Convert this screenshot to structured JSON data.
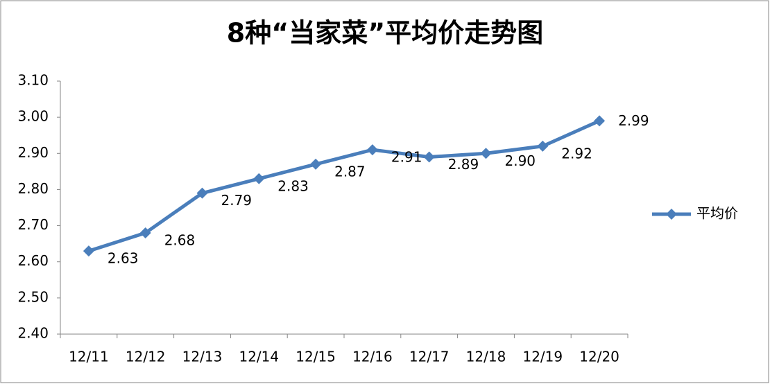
{
  "chart_data": {
    "type": "line",
    "title": "8种“当家菜”平均价走势图",
    "categories": [
      "12/11",
      "12/12",
      "12/13",
      "12/14",
      "12/15",
      "12/16",
      "12/17",
      "12/18",
      "12/19",
      "12/20"
    ],
    "series": [
      {
        "name": "平均价",
        "color": "#4a7ebb",
        "values": [
          2.63,
          2.68,
          2.79,
          2.83,
          2.87,
          2.91,
          2.89,
          2.9,
          2.92,
          2.99
        ],
        "value_labels": [
          "2.63",
          "2.68",
          "2.79",
          "2.83",
          "2.87",
          "2.91",
          "2.89",
          "2.90",
          "2.92",
          "2.99"
        ]
      }
    ],
    "ylim": [
      2.4,
      3.1
    ],
    "yticks": [
      {
        "value": 2.4,
        "label": "2.40"
      },
      {
        "value": 2.5,
        "label": "2.50"
      },
      {
        "value": 2.6,
        "label": "2.60"
      },
      {
        "value": 2.7,
        "label": "2.70"
      },
      {
        "value": 2.8,
        "label": "2.80"
      },
      {
        "value": 2.9,
        "label": "2.90"
      },
      {
        "value": 3.0,
        "label": "3.00"
      },
      {
        "value": 3.1,
        "label": "3.10"
      }
    ],
    "grid": false,
    "legend": "right"
  }
}
